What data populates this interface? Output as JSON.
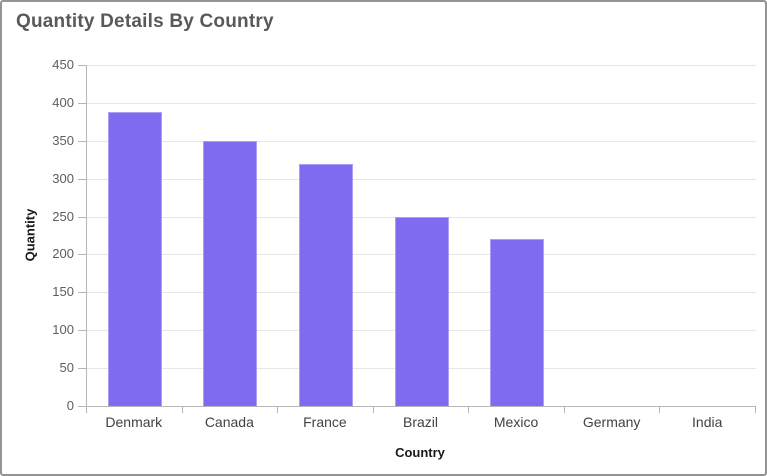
{
  "window": {
    "title": "Quantity Details By Country"
  },
  "chart_data": {
    "type": "bar",
    "title": "Quantity Details By Country",
    "categories": [
      "Denmark",
      "Canada",
      "France",
      "Brazil",
      "Mexico",
      "Germany",
      "India"
    ],
    "values": [
      388,
      350,
      320,
      250,
      220,
      0,
      0
    ],
    "xlabel": "Country",
    "ylabel": "Quantity",
    "ylim": [
      0,
      450
    ],
    "yticks": [
      0,
      50,
      100,
      150,
      200,
      250,
      300,
      350,
      400,
      450
    ],
    "grid": true,
    "legend": "none",
    "bar_color": "#7F6BF0"
  },
  "colors": {
    "bar": "#7F6BF0",
    "grid": "#E7E7E7",
    "axis": "#B6B6B6",
    "title": "#595959",
    "tick_label": "#5E5E5E",
    "category_label": "#424242",
    "axis_title": "#1A1A1A",
    "border": "#949494",
    "background": "#FFFFFF"
  }
}
